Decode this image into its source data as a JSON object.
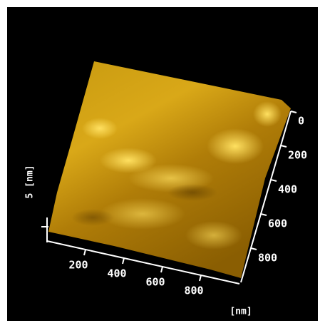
{
  "surface": {
    "z_axis_label": "5 [nm]",
    "x_ticks": [
      200,
      400,
      600,
      800
    ],
    "y_ticks": [
      0,
      200,
      400,
      600,
      800
    ],
    "unit_label": "[nm]"
  }
}
